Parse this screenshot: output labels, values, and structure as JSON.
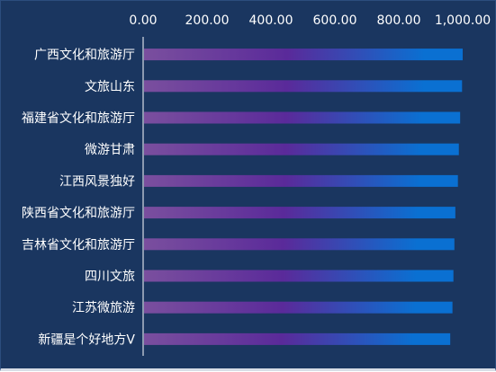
{
  "chart_data": {
    "type": "bar",
    "orientation": "horizontal",
    "title": "",
    "xlabel": "",
    "ylabel": "",
    "x_axis_position": "top",
    "xlim": [
      0,
      1000
    ],
    "x_ticks": [
      "0.00",
      "200.00",
      "400.00",
      "600.00",
      "800.00",
      "1,000.00"
    ],
    "grid": false,
    "legend": "none",
    "categories": [
      "广西文化和旅游厅",
      "文旅山东",
      "福建省文化和旅游厅",
      "微游甘肃",
      "江西风景独好",
      "陕西省文化和旅游厅",
      "吉林省文化和旅游厅",
      "四川文旅",
      "江苏微旅游",
      "新疆是个好地方V"
    ],
    "values": [
      1000,
      998,
      992,
      988,
      985,
      977,
      974,
      971,
      968,
      961
    ],
    "colors": {
      "background": "#1a3660",
      "bar_gradient": [
        "#7a4f9e",
        "#5a2a9a",
        "#0a70d2"
      ],
      "axis_line": "#ffffff",
      "text": "#ffffff"
    }
  }
}
